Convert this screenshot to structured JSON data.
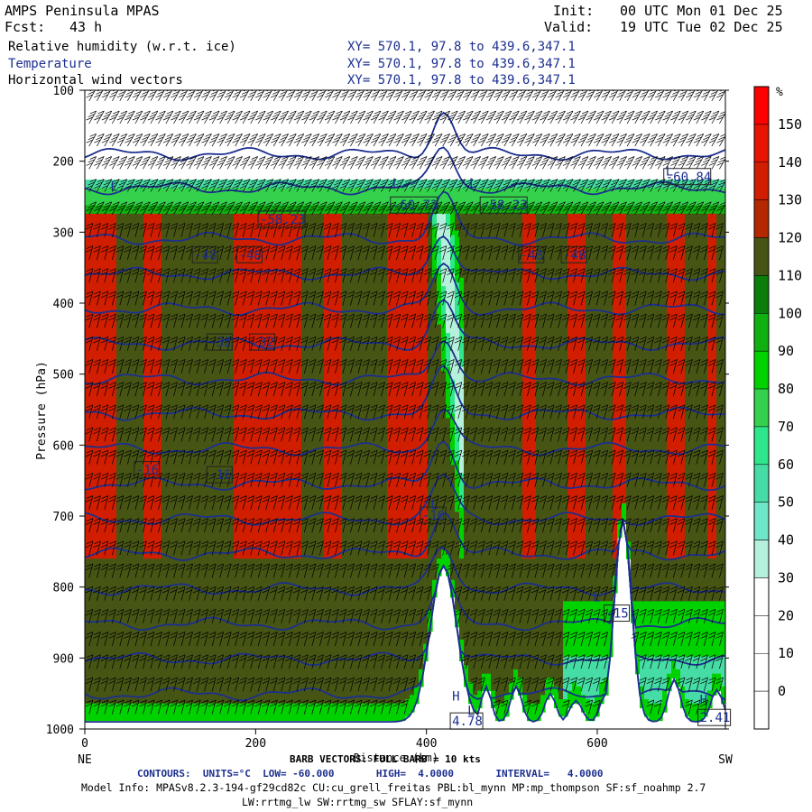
{
  "header": {
    "model_name": "AMPS Peninsula MPAS",
    "init_label": "Init:",
    "init_time": "00 UTC Mon 01 Dec 25",
    "fcst_label": "Fcst:",
    "fcst_hours": "43 h",
    "valid_label": "Valid:",
    "valid_time": "19 UTC Tue 02 Dec 25",
    "fields": [
      {
        "name": "Relative humidity (w.r.t. ice)",
        "xy": "XY= 570.1, 97.8 to 439.6,347.1"
      },
      {
        "name": "Temperature",
        "xy": "XY= 570.1, 97.8 to 439.6,347.1"
      },
      {
        "name": "Horizontal wind vectors",
        "xy": "XY= 570.1, 97.8 to 439.6,347.1"
      }
    ]
  },
  "footer": {
    "barb_line": "BARB VECTORS: FULL BARB = 10 kts",
    "contours_line": "CONTOURS:  UNITS=°C  LOW= -60.000       HIGH=  4.0000       INTERVAL=   4.0000",
    "model_info_1": "Model Info: MPASv8.2.3-194-gf29cd82c CU:cu_grell_freitas PBL:bl_mynn MP:mp_thompson SF:sf_noahmp 2.7",
    "model_info_2": "LW:rrtmg_lw SW:rrtmg_sw SFLAY:sf_mynn"
  },
  "colors": {
    "rh_10": "#ffffff",
    "rh_20": "#ffffff",
    "rh_30": "#b4f0dc",
    "rh_40": "#6ee6c8",
    "rh_50": "#46dca5",
    "rh_60": "#2ee68c",
    "rh_70": "#34d24c",
    "rh_80": "#00d200",
    "rh_90": "#10b010",
    "rh_100": "#0b7d0b",
    "rh_110": "#465514",
    "rh_120": "#b42800",
    "rh_130": "#d21e00",
    "rh_140": "#e61400",
    "rh_150": "#ff0000",
    "contour": "#1c2f8f",
    "barb": "#000000"
  },
  "chart_data": {
    "type": "heatmap",
    "title": "Relative humidity (w.r.t. ice)",
    "xlabel": "Distance (km)",
    "ylabel": "Pressure (hPa)",
    "x_ticks": [
      0,
      200,
      400,
      600
    ],
    "x_end_labels": {
      "left": "NE",
      "right": "SW"
    },
    "y_ticks": [
      100,
      200,
      300,
      400,
      500,
      600,
      700,
      800,
      900,
      1000
    ],
    "xlim": [
      0,
      750
    ],
    "ylim": [
      1000,
      100
    ],
    "colorbar": {
      "unit": "%",
      "ticks": [
        0,
        10,
        20,
        30,
        40,
        50,
        60,
        70,
        80,
        90,
        100,
        110,
        120,
        130,
        140,
        150
      ],
      "levels": [
        160,
        150,
        140,
        130,
        120,
        110,
        100,
        90,
        80,
        70,
        60,
        50,
        40,
        30,
        20,
        10,
        0,
        -10
      ]
    },
    "temperature_contours": {
      "units": "°C",
      "low": -60,
      "high": 4,
      "interval": 4,
      "labels": [
        {
          "text": "-58.23",
          "x": 205,
          "p": 283
        },
        {
          "text": "-60.73",
          "x": 360,
          "p": 263
        },
        {
          "text": "-58.23",
          "x": 465,
          "p": 263
        },
        {
          "text": "-60.84",
          "x": 680,
          "p": 223
        },
        {
          "text": "-48",
          "x": 128,
          "p": 333
        },
        {
          "text": "-48",
          "x": 180,
          "p": 333
        },
        {
          "text": "-48",
          "x": 510,
          "p": 333
        },
        {
          "text": "-48",
          "x": 560,
          "p": 333
        },
        {
          "text": "-32",
          "x": 145,
          "p": 456
        },
        {
          "text": "-32",
          "x": 195,
          "p": 456
        },
        {
          "text": "-16",
          "x": 60,
          "p": 636
        },
        {
          "text": "-16",
          "x": 145,
          "p": 643
        },
        {
          "text": "-16",
          "x": 395,
          "p": 700
        },
        {
          "text": "-15",
          "x": 610,
          "p": 838
        },
        {
          "text": "4.78",
          "x": 430,
          "p": 990
        },
        {
          "text": "2.41",
          "x": 720,
          "p": 985
        }
      ],
      "extrema_marks": [
        {
          "text": "L",
          "x": 30,
          "p": 242
        },
        {
          "text": "L",
          "x": 360,
          "p": 237
        },
        {
          "text": "L",
          "x": 450,
          "p": 237
        },
        {
          "text": "L",
          "x": 680,
          "p": 220
        },
        {
          "text": "L",
          "x": 405,
          "p": 690
        },
        {
          "text": "L",
          "x": 595,
          "p": 820
        },
        {
          "text": "H",
          "x": 430,
          "p": 960
        },
        {
          "text": "H",
          "x": 720,
          "p": 965
        },
        {
          "text": "L",
          "x": 448,
          "p": 980
        }
      ]
    }
  }
}
